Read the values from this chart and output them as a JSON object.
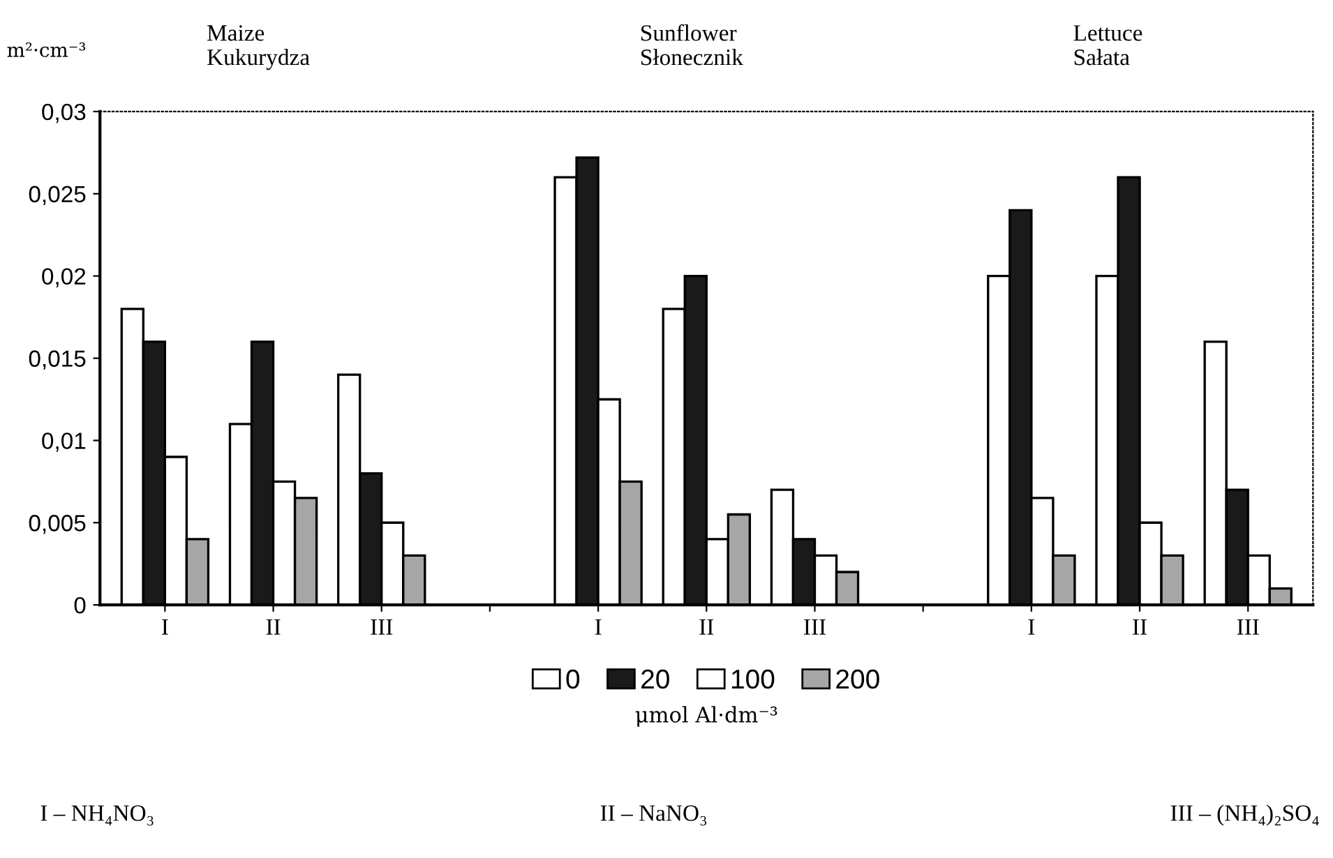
{
  "chart_data": {
    "type": "bar",
    "categories": [
      "I",
      "II",
      "III",
      null,
      "I",
      "II",
      "III",
      null,
      "I",
      "II",
      "III"
    ],
    "series": [
      {
        "name": "0",
        "color": "#ffffff",
        "values": [
          0.018,
          0.011,
          0.014,
          null,
          0.026,
          0.018,
          0.007,
          null,
          0.02,
          0.02,
          0.016
        ]
      },
      {
        "name": "20",
        "color": "#1a1a1a",
        "values": [
          0.016,
          0.016,
          0.008,
          null,
          0.0272,
          0.02,
          0.004,
          null,
          0.024,
          0.026,
          0.007
        ]
      },
      {
        "name": "100",
        "color": "#ffffff",
        "values": [
          0.009,
          0.0075,
          0.005,
          null,
          0.0125,
          0.004,
          0.003,
          null,
          0.0065,
          0.005,
          0.003
        ]
      },
      {
        "name": "200",
        "color": "#a6a6a6",
        "values": [
          0.004,
          0.0065,
          0.003,
          null,
          0.0075,
          0.0055,
          0.002,
          null,
          0.003,
          0.003,
          0.001
        ]
      }
    ],
    "ylabel": "m²·cm⁻³",
    "xlabel": "μmol Al·dm⁻³",
    "ylim": [
      0,
      0.03
    ],
    "yticks": [
      0,
      {
        "value": 0.005,
        "label": "0,005"
      },
      {
        "value": 0.01,
        "label": "0,01"
      },
      {
        "value": 0.015,
        "label": "0,015"
      },
      {
        "value": 0.02,
        "label": "0,02"
      },
      {
        "value": 0.025,
        "label": "0,025"
      },
      {
        "value": 0.03,
        "label": "0,03"
      }
    ],
    "annotations": [
      "Maize\nKukurydza",
      "Sunflower\nSłonecznik",
      "Lettuce\nSałata",
      "I – NH₄NO₃",
      "II – NaNO₃",
      "III – (NH₄)₂SO₄"
    ],
    "legend": "bottom",
    "grid": false
  }
}
